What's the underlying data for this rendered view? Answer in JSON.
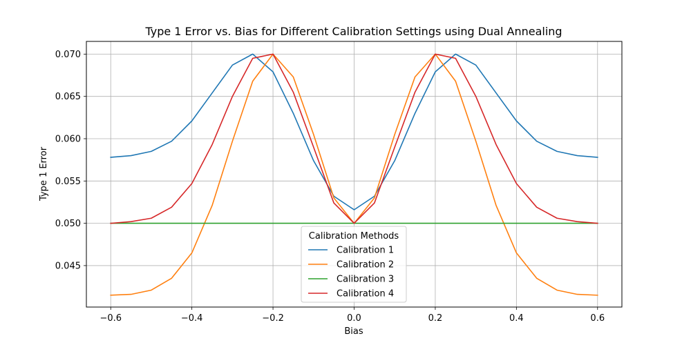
{
  "chart_data": {
    "type": "line",
    "title": "Type 1 Error vs. Bias for Different Calibration Settings using Dual Annealing",
    "xlabel": "Bias",
    "ylabel": "Type 1 Error",
    "xlim": [
      -0.66,
      0.66
    ],
    "ylim": [
      0.0401,
      0.0715
    ],
    "xticks": [
      -0.6,
      -0.4,
      -0.2,
      0.0,
      0.2,
      0.4,
      0.6
    ],
    "xtick_labels": [
      "−0.6",
      "−0.4",
      "−0.2",
      "0.0",
      "0.2",
      "0.4",
      "0.6"
    ],
    "yticks": [
      0.045,
      0.05,
      0.055,
      0.06,
      0.065,
      0.07
    ],
    "ytick_labels": [
      "0.045",
      "0.050",
      "0.055",
      "0.060",
      "0.065",
      "0.070"
    ],
    "grid": true,
    "legend": {
      "title": "Calibration Methods",
      "placement": "lower center"
    },
    "x": [
      -0.6,
      -0.55,
      -0.5,
      -0.45,
      -0.4,
      -0.35,
      -0.3,
      -0.25,
      -0.2,
      -0.15,
      -0.1,
      -0.05,
      0.0,
      0.05,
      0.1,
      0.15,
      0.2,
      0.25,
      0.3,
      0.35,
      0.4,
      0.45,
      0.5,
      0.55,
      0.6
    ],
    "series": [
      {
        "name": "Calibration 1",
        "color": "#1f77b4",
        "values": [
          0.0578,
          0.058,
          0.0585,
          0.0597,
          0.0621,
          0.0654,
          0.0687,
          0.07,
          0.0679,
          0.063,
          0.0574,
          0.0532,
          0.0516,
          0.0532,
          0.0574,
          0.063,
          0.0679,
          0.07,
          0.0687,
          0.0654,
          0.0621,
          0.0597,
          0.0585,
          0.058,
          0.0578
        ]
      },
      {
        "name": "Calibration 2",
        "color": "#ff7f0e",
        "values": [
          0.0415,
          0.0416,
          0.0421,
          0.0435,
          0.0465,
          0.0521,
          0.0597,
          0.0668,
          0.07,
          0.0673,
          0.0605,
          0.053,
          0.05,
          0.053,
          0.0605,
          0.0673,
          0.07,
          0.0668,
          0.0597,
          0.0521,
          0.0465,
          0.0435,
          0.0421,
          0.0416,
          0.0415
        ]
      },
      {
        "name": "Calibration 3",
        "color": "#2ca02c",
        "values": [
          0.05,
          0.05,
          0.05,
          0.05,
          0.05,
          0.05,
          0.05,
          0.05,
          0.05,
          0.05,
          0.05,
          0.05,
          0.05,
          0.05,
          0.05,
          0.05,
          0.05,
          0.05,
          0.05,
          0.05,
          0.05,
          0.05,
          0.05,
          0.05,
          0.05
        ]
      },
      {
        "name": "Calibration 4",
        "color": "#d62728",
        "values": [
          0.05,
          0.0502,
          0.0506,
          0.0519,
          0.0547,
          0.0593,
          0.065,
          0.0695,
          0.07,
          0.0655,
          0.059,
          0.0524,
          0.05,
          0.0524,
          0.059,
          0.0655,
          0.07,
          0.0695,
          0.065,
          0.0593,
          0.0547,
          0.0519,
          0.0506,
          0.0502,
          0.05
        ]
      }
    ]
  }
}
